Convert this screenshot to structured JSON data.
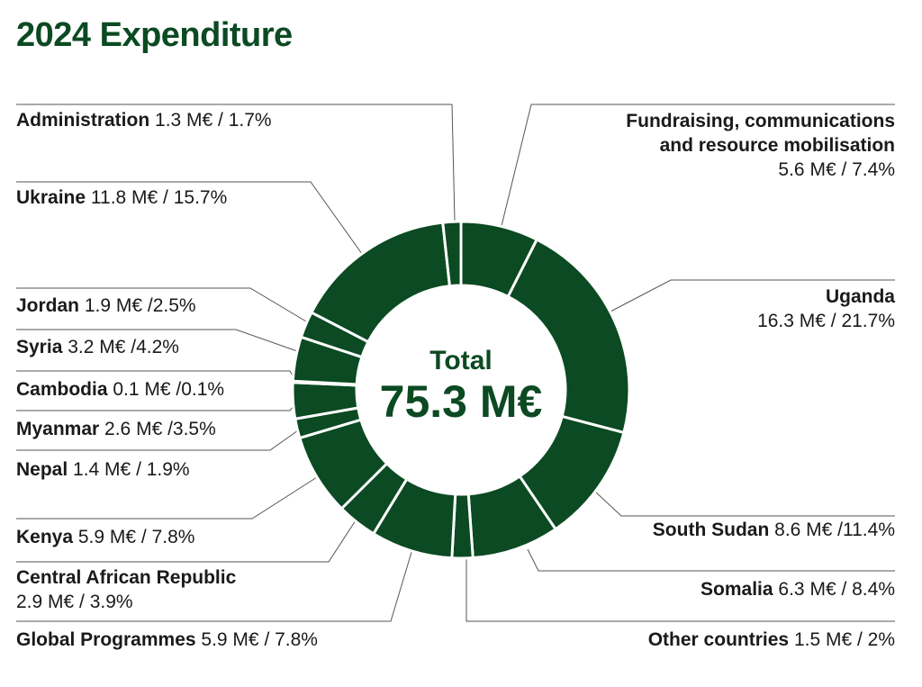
{
  "title": "2024 Expenditure",
  "center": {
    "label": "Total",
    "value": "75.3 M€"
  },
  "colors": {
    "accent": "#0b4a22",
    "segment": "#0b4a22",
    "separator": "#ffffff",
    "leader": "#555555"
  },
  "chart_data": {
    "type": "pie",
    "title": "2024 Expenditure",
    "total": "75.3 M€",
    "unit": "M€",
    "slices": [
      {
        "name": "Fundraising, communications and resource mobilisation",
        "value": 5.6,
        "percent": 7.4,
        "value_text": "5.6 M€ / 7.4%"
      },
      {
        "name": "Uganda",
        "value": 16.3,
        "percent": 21.7,
        "value_text": "16.3 M€ / 21.7%"
      },
      {
        "name": "South Sudan",
        "value": 8.6,
        "percent": 11.4,
        "value_text": "8.6 M€ /11.4%"
      },
      {
        "name": "Somalia",
        "value": 6.3,
        "percent": 8.4,
        "value_text": "6.3 M€ / 8.4%"
      },
      {
        "name": "Other countries",
        "value": 1.5,
        "percent": 2,
        "value_text": "1.5 M€ / 2%"
      },
      {
        "name": "Global Programmes",
        "value": 5.9,
        "percent": 7.8,
        "value_text": "5.9 M€ / 7.8%"
      },
      {
        "name": "Central African Republic",
        "value": 2.9,
        "percent": 3.9,
        "value_text": "2.9 M€ / 3.9%"
      },
      {
        "name": "Kenya",
        "value": 5.9,
        "percent": 7.8,
        "value_text": "5.9 M€ / 7.8%"
      },
      {
        "name": "Nepal",
        "value": 1.4,
        "percent": 1.9,
        "value_text": "1.4 M€ / 1.9%"
      },
      {
        "name": "Myanmar",
        "value": 2.6,
        "percent": 3.5,
        "value_text": "2.6 M€ /3.5%"
      },
      {
        "name": "Cambodia",
        "value": 0.1,
        "percent": 0.1,
        "value_text": "0.1 M€ /0.1%"
      },
      {
        "name": "Syria",
        "value": 3.2,
        "percent": 4.2,
        "value_text": "3.2 M€ /4.2%"
      },
      {
        "name": "Jordan",
        "value": 1.9,
        "percent": 2.5,
        "value_text": "1.9 M€ /2.5%"
      },
      {
        "name": "Ukraine",
        "value": 11.8,
        "percent": 15.7,
        "value_text": "11.8 M€ / 15.7%"
      },
      {
        "name": "Administration",
        "value": 1.3,
        "percent": 1.7,
        "value_text": "1.3 M€ / 1.7%"
      }
    ]
  },
  "labels": {
    "administration": {
      "name": "Administration",
      "value": "1.3 M€ / 1.7%"
    },
    "ukraine": {
      "name": "Ukraine",
      "value": "11.8 M€ / 15.7%"
    },
    "jordan": {
      "name": "Jordan",
      "value": "1.9 M€ /2.5%"
    },
    "syria": {
      "name": "Syria",
      "value": "3.2 M€ /4.2%"
    },
    "cambodia": {
      "name": "Cambodia",
      "value": "0.1 M€ /0.1%"
    },
    "myanmar": {
      "name": "Myanmar",
      "value": "2.6 M€ /3.5%"
    },
    "nepal": {
      "name": "Nepal",
      "value": "1.4 M€ / 1.9%"
    },
    "kenya": {
      "name": "Kenya",
      "value": "5.9 M€ / 7.8%"
    },
    "car": {
      "name": "Central African Republic",
      "value": "2.9 M€ / 3.9%"
    },
    "global": {
      "name": "Global Programmes",
      "value": "5.9 M€ / 7.8%"
    },
    "fundraising": {
      "name_line1": "Fundraising, communications",
      "name_line2": "and resource mobilisation",
      "value": "5.6 M€ / 7.4%"
    },
    "uganda": {
      "name": "Uganda",
      "value": "16.3 M€ / 21.7%"
    },
    "south_sudan": {
      "name": "South Sudan",
      "value": "8.6 M€ /11.4%"
    },
    "somalia": {
      "name": "Somalia",
      "value": "6.3 M€ / 8.4%"
    },
    "other": {
      "name": "Other countries",
      "value": "1.5 M€ / 2%"
    }
  }
}
